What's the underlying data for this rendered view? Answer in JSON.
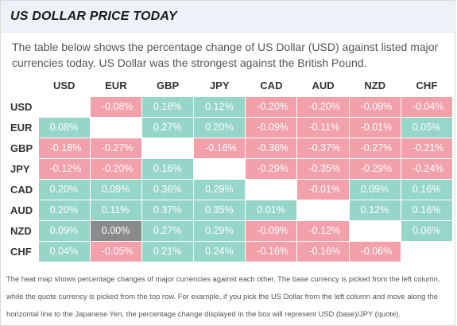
{
  "header": {
    "title": "US DOLLAR PRICE TODAY"
  },
  "intro": "The table below shows the percentage change of US Dollar (USD) against listed major currencies today. US Dollar was the strongest against the British Pound.",
  "heatmap": {
    "currencies": [
      "USD",
      "EUR",
      "GBP",
      "JPY",
      "CAD",
      "AUD",
      "NZD",
      "CHF"
    ],
    "rows": [
      {
        "label": "USD",
        "cells": [
          "",
          "-0.08%",
          "0.18%",
          "0.12%",
          "-0.20%",
          "-0.20%",
          "-0.09%",
          "-0.04%"
        ]
      },
      {
        "label": "EUR",
        "cells": [
          "0.08%",
          "",
          "0.27%",
          "0.20%",
          "-0.09%",
          "-0.11%",
          "-0.01%",
          "0.05%"
        ]
      },
      {
        "label": "GBP",
        "cells": [
          "-0.18%",
          "-0.27%",
          "",
          "-0.16%",
          "-0.36%",
          "-0.37%",
          "-0.27%",
          "-0.21%"
        ]
      },
      {
        "label": "JPY",
        "cells": [
          "-0.12%",
          "-0.20%",
          "0.16%",
          "",
          "-0.29%",
          "-0.35%",
          "-0.29%",
          "-0.24%"
        ]
      },
      {
        "label": "CAD",
        "cells": [
          "0.20%",
          "0.09%",
          "0.36%",
          "0.29%",
          "",
          "-0.01%",
          "0.09%",
          "0.16%"
        ]
      },
      {
        "label": "AUD",
        "cells": [
          "0.20%",
          "0.11%",
          "0.37%",
          "0.35%",
          "0.01%",
          "",
          "0.12%",
          "0.16%"
        ]
      },
      {
        "label": "NZD",
        "cells": [
          "0.09%",
          "0.00%",
          "0.27%",
          "0.29%",
          "-0.09%",
          "-0.12%",
          "",
          "0.06%"
        ]
      },
      {
        "label": "CHF",
        "cells": [
          "0.04%",
          "-0.05%",
          "0.21%",
          "0.24%",
          "-0.16%",
          "-0.16%",
          "-0.06%",
          ""
        ]
      }
    ],
    "colors": {
      "positive": "#96d6c8",
      "negative": "#f2a1ab",
      "unchanged": "#888a8c"
    }
  },
  "footnote": "The heat map shows percentage changes of major currencies against each other. The base currency is picked from the left column, while the quote currency is picked from the top row. For example, if you pick the US Dollar from the left column and move along the horizontal line to the Japanese Yen, the percentage change displayed in the box will represent USD (base)/JPY (quote)."
}
